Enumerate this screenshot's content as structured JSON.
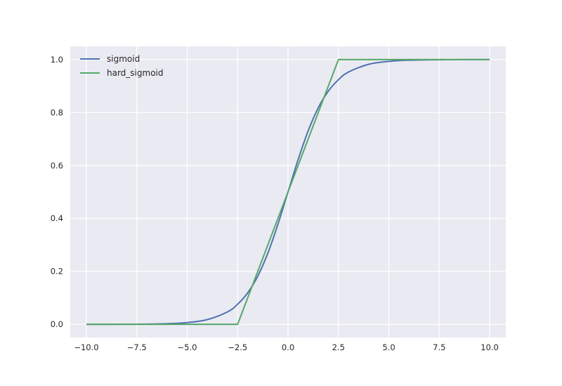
{
  "chart_data": {
    "type": "line",
    "title": "",
    "xlabel": "",
    "ylabel": "",
    "xlim": [
      -10.8,
      10.8
    ],
    "ylim": [
      -0.05,
      1.05
    ],
    "grid": true,
    "legend_position": "top-left",
    "background_color": "#eaeaf2",
    "grid_color": "#ffffff",
    "x_ticks": [
      -10.0,
      -7.5,
      -5.0,
      -2.5,
      0.0,
      2.5,
      5.0,
      7.5,
      10.0
    ],
    "x_tick_labels": [
      "−10.0",
      "−7.5",
      "−5.0",
      "−2.5",
      "0.0",
      "2.5",
      "5.0",
      "7.5",
      "10.0"
    ],
    "y_ticks": [
      0.0,
      0.2,
      0.4,
      0.6,
      0.8,
      1.0
    ],
    "y_tick_labels": [
      "0.0",
      "0.2",
      "0.4",
      "0.6",
      "0.8",
      "1.0"
    ],
    "series": [
      {
        "name": "sigmoid",
        "color": "#4c72b0",
        "x": [
          -10,
          -8,
          -6,
          -5,
          -4,
          -3,
          -2.5,
          -2,
          -1.5,
          -1,
          -0.5,
          0,
          0.5,
          1,
          1.5,
          2,
          2.5,
          3,
          4,
          5,
          6,
          8,
          10
        ],
        "y": [
          5e-05,
          0.0003,
          0.0025,
          0.0067,
          0.018,
          0.047,
          0.076,
          0.119,
          0.182,
          0.269,
          0.378,
          0.5,
          0.622,
          0.731,
          0.818,
          0.881,
          0.924,
          0.953,
          0.982,
          0.993,
          0.9975,
          0.9997,
          0.99995
        ]
      },
      {
        "name": "hard_sigmoid",
        "color": "#55a868",
        "x": [
          -10,
          -2.5,
          2.5,
          10
        ],
        "y": [
          0,
          0,
          1,
          1
        ]
      }
    ]
  }
}
